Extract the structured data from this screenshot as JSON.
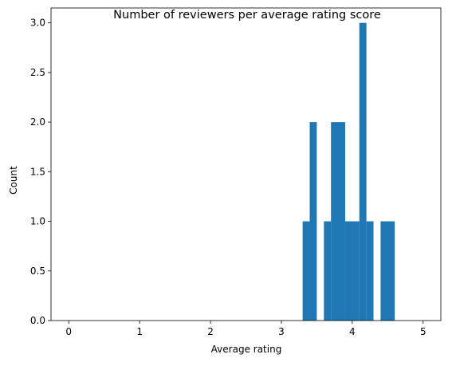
{
  "chart_data": {
    "type": "bar",
    "title": "Number of reviewers per average rating score",
    "xlabel": "Average rating",
    "ylabel": "Count",
    "xlim": [
      -0.25,
      5.25
    ],
    "ylim": [
      0,
      3.15
    ],
    "xticks": [
      "0",
      "1",
      "2",
      "3",
      "4",
      "5"
    ],
    "yticks": [
      "0.0",
      "0.5",
      "1.0",
      "1.5",
      "2.0",
      "2.5",
      "3.0"
    ],
    "grid": false,
    "bar_color": "#1f77b4",
    "bars": [
      {
        "x0": 3.3,
        "x1": 3.4,
        "count": 1
      },
      {
        "x0": 3.4,
        "x1": 3.5,
        "count": 2
      },
      {
        "x0": 3.6,
        "x1": 3.7,
        "count": 1
      },
      {
        "x0": 3.7,
        "x1": 3.9,
        "count": 2
      },
      {
        "x0": 3.9,
        "x1": 4.1,
        "count": 1
      },
      {
        "x0": 4.1,
        "x1": 4.2,
        "count": 3
      },
      {
        "x0": 4.2,
        "x1": 4.3,
        "count": 1
      },
      {
        "x0": 4.4,
        "x1": 4.6,
        "count": 1
      }
    ]
  }
}
